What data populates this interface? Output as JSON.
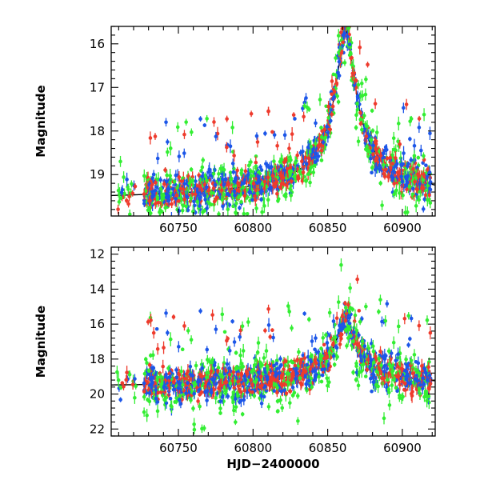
{
  "chart_data": [
    {
      "type": "scatter",
      "panel": "top",
      "xlim": [
        60705,
        60922
      ],
      "ylim": [
        19.95,
        15.6
      ],
      "y_inverted": true,
      "ylabel": "Magnitude",
      "xlabel": "",
      "x_ticks": [
        60750,
        60800,
        60850,
        60900
      ],
      "y_ticks": [
        16,
        17,
        18,
        19
      ],
      "grid": false,
      "series_colors": [
        "#1c56e8",
        "#33ee33",
        "#ee3b2d"
      ],
      "model_color": "#000000",
      "baseline": 19.63,
      "peak_x": 60862,
      "peak_y": 15.7
    },
    {
      "type": "scatter",
      "panel": "bottom",
      "xlim": [
        60705,
        60922
      ],
      "ylim": [
        22.4,
        11.6
      ],
      "y_inverted": true,
      "ylabel": "Magnitude",
      "xlabel": "HJD−2400000",
      "x_ticks": [
        60750,
        60800,
        60850,
        60900
      ],
      "y_ticks": [
        12,
        14,
        16,
        18,
        20,
        22
      ],
      "grid": false,
      "series_colors": [
        "#1c56e8",
        "#33ee33",
        "#ee3b2d"
      ],
      "model_color": "#000000",
      "baseline": 19.63,
      "peak_x": 60862,
      "peak_y": 15.7
    }
  ]
}
